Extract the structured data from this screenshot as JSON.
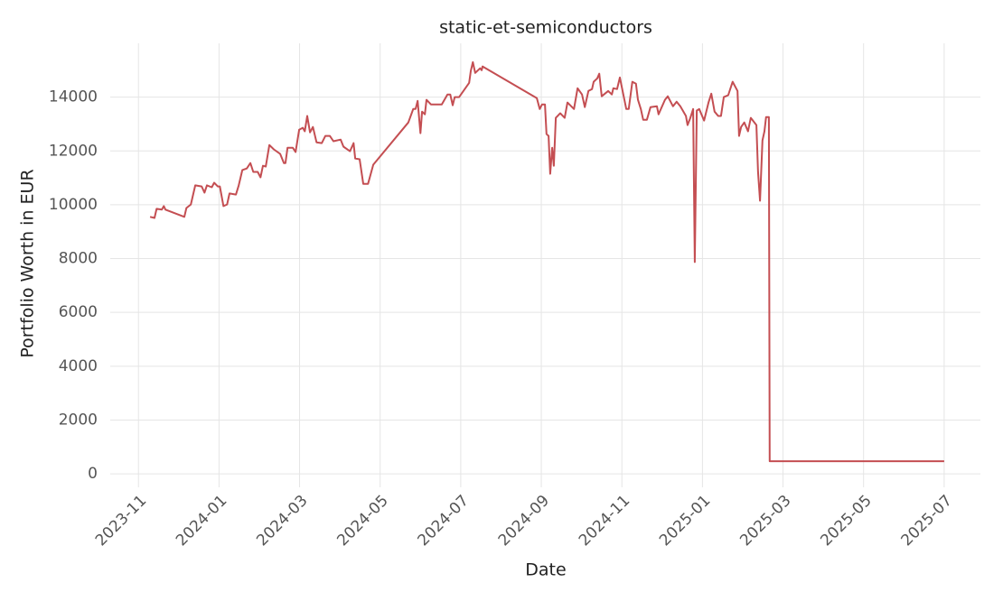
{
  "chart_data": {
    "type": "line",
    "title": "static-et-semiconductors",
    "x_label": "Date",
    "y_label": "Portfolio Worth in EUR",
    "color": "#c44e52",
    "grid": true,
    "xlim": [
      -0.7,
      20.9
    ],
    "ylim": [
      -500,
      16000
    ],
    "xticks": [
      {
        "value": 0,
        "label": "2023-11"
      },
      {
        "value": 2,
        "label": "2024-01"
      },
      {
        "value": 4,
        "label": "2024-03"
      },
      {
        "value": 6,
        "label": "2024-05"
      },
      {
        "value": 8,
        "label": "2024-07"
      },
      {
        "value": 10,
        "label": "2024-09"
      },
      {
        "value": 12,
        "label": "2024-11"
      },
      {
        "value": 14,
        "label": "2025-01"
      },
      {
        "value": 16,
        "label": "2025-03"
      },
      {
        "value": 18,
        "label": "2025-05"
      },
      {
        "value": 20,
        "label": "2025-07"
      }
    ],
    "yticks": [
      0,
      2000,
      4000,
      6000,
      8000,
      10000,
      12000,
      14000
    ],
    "x": [
      0.29,
      0.4,
      0.45,
      0.58,
      0.63,
      0.67,
      1.14,
      1.19,
      1.3,
      1.41,
      1.57,
      1.64,
      1.7,
      1.82,
      1.88,
      1.97,
      2.02,
      2.11,
      2.2,
      2.26,
      2.42,
      2.49,
      2.58,
      2.69,
      2.78,
      2.85,
      2.96,
      3.03,
      3.09,
      3.16,
      3.25,
      3.36,
      3.52,
      3.61,
      3.65,
      3.7,
      3.83,
      3.9,
      3.99,
      4.08,
      4.13,
      4.19,
      4.26,
      4.33,
      4.42,
      4.55,
      4.64,
      4.75,
      4.84,
      5.02,
      5.09,
      5.25,
      5.34,
      5.38,
      5.49,
      5.58,
      5.7,
      5.83,
      6.7,
      6.82,
      6.88,
      6.93,
      7.0,
      7.04,
      7.11,
      7.15,
      7.26,
      7.53,
      7.67,
      7.74,
      7.8,
      7.85,
      7.96,
      8.21,
      8.25,
      8.3,
      8.36,
      8.48,
      8.52,
      8.54,
      9.89,
      9.96,
      10.02,
      10.09,
      10.13,
      10.18,
      10.22,
      10.27,
      10.31,
      10.36,
      10.47,
      10.58,
      10.65,
      10.81,
      10.9,
      11.01,
      11.08,
      11.17,
      11.26,
      11.3,
      11.39,
      11.44,
      11.5,
      11.66,
      11.75,
      11.79,
      11.88,
      11.95,
      12.11,
      12.17,
      12.26,
      12.35,
      12.4,
      12.47,
      12.53,
      12.62,
      12.71,
      12.87,
      12.91,
      13.07,
      13.14,
      13.27,
      13.36,
      13.45,
      13.59,
      13.63,
      13.7,
      13.77,
      13.81,
      13.86,
      13.92,
      14.04,
      14.15,
      14.22,
      14.3,
      14.39,
      14.46,
      14.53,
      14.64,
      14.75,
      14.87,
      14.91,
      14.96,
      15.04,
      15.13,
      15.2,
      15.34,
      15.38,
      15.43,
      15.49,
      15.54,
      15.58,
      15.65,
      15.67,
      20.0
    ],
    "values": [
      9550,
      9510,
      9850,
      9820,
      9950,
      9820,
      9550,
      9880,
      10010,
      10720,
      10680,
      10450,
      10720,
      10650,
      10820,
      10680,
      10680,
      9950,
      10010,
      10420,
      10380,
      10720,
      11290,
      11350,
      11550,
      11220,
      11220,
      11020,
      11450,
      11420,
      12220,
      12060,
      11890,
      11550,
      11550,
      12120,
      12120,
      11960,
      12790,
      12860,
      12730,
      13300,
      12690,
      12890,
      12320,
      12290,
      12560,
      12560,
      12360,
      12420,
      12160,
      11990,
      12290,
      11720,
      11690,
      10780,
      10780,
      11490,
      13060,
      13560,
      13560,
      13860,
      12660,
      13460,
      13360,
      13900,
      13730,
      13730,
      14100,
      14100,
      13700,
      14000,
      14000,
      14530,
      14970,
      15300,
      14900,
      15070,
      15000,
      15140,
      13960,
      13560,
      13730,
      13730,
      12630,
      12560,
      11150,
      12120,
      11450,
      13230,
      13400,
      13230,
      13800,
      13560,
      14330,
      14100,
      13630,
      14230,
      14300,
      14570,
      14700,
      14870,
      14030,
      14230,
      14100,
      14330,
      14300,
      14730,
      13560,
      13560,
      14570,
      14500,
      13900,
      13560,
      13160,
      13160,
      13630,
      13660,
      13360,
      13900,
      14030,
      13660,
      13830,
      13660,
      13300,
      12960,
      13230,
      13560,
      7870,
      13500,
      13560,
      13130,
      13800,
      14130,
      13460,
      13300,
      13300,
      14000,
      14070,
      14570,
      14230,
      12560,
      12890,
      13060,
      12730,
      13230,
      12960,
      11220,
      10150,
      12390,
      12730,
      13260,
      13260,
      470,
      470
    ]
  }
}
